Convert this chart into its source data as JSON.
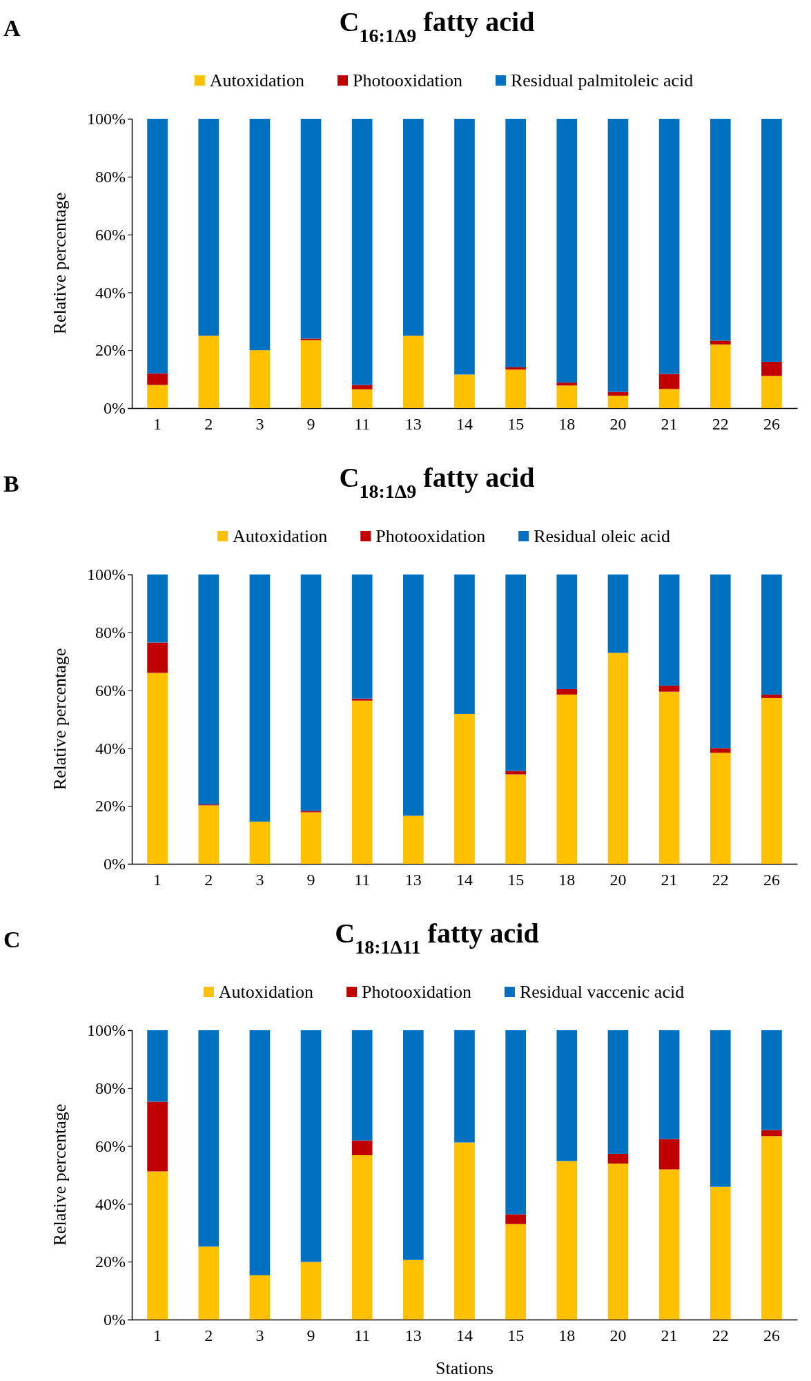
{
  "chart_data": [
    {
      "type": "bar",
      "title": "C$_{16:1Δ9}$ fatty acid",
      "ylabel": "Relative percentage",
      "annotations": [
        "A"
      ],
      "stacked": true,
      "legend": "top",
      "categories": [
        "1",
        "2",
        "3",
        "9",
        "11",
        "13",
        "14",
        "15",
        "18",
        "20",
        "21",
        "22",
        "26"
      ],
      "ylim": [
        0,
        100
      ],
      "yticks": [
        {
          "value": 0,
          "label": "0%"
        },
        {
          "value": 20,
          "label": "20%"
        },
        {
          "value": 40,
          "label": "40%"
        },
        {
          "value": 60,
          "label": "60%"
        },
        {
          "value": 80,
          "label": "80%"
        },
        {
          "value": 100,
          "label": "100%"
        }
      ],
      "series": [
        {
          "name": "Autoxidation",
          "color": "#ffc000",
          "values": [
            8,
            25,
            20,
            23.5,
            6.5,
            25,
            11.6,
            13.3,
            7.8,
            4.3,
            6.6,
            22,
            11.1
          ]
        },
        {
          "name": "Photooxidation",
          "color": "#c00000",
          "values": [
            4,
            0,
            0,
            0.5,
            1.5,
            0,
            0,
            0.8,
            1,
            1.3,
            5.2,
            1.3,
            4.9
          ]
        },
        {
          "name": "Residual palmitoleic acid",
          "color": "#0070c0",
          "values": [
            88,
            75,
            80,
            76,
            92,
            75,
            88.4,
            85.9,
            91.2,
            94.4,
            88.2,
            76.7,
            84
          ]
        }
      ]
    },
    {
      "type": "bar",
      "title": "C$_{18:1Δ9}$ fatty acid",
      "ylabel": "Relative percentage",
      "annotations": [
        "B"
      ],
      "stacked": true,
      "legend": "top",
      "categories": [
        "1",
        "2",
        "3",
        "9",
        "11",
        "13",
        "14",
        "15",
        "18",
        "20",
        "21",
        "22",
        "26"
      ],
      "ylim": [
        0,
        100
      ],
      "yticks": [
        {
          "value": 0,
          "label": "0%"
        },
        {
          "value": 20,
          "label": "20%"
        },
        {
          "value": 40,
          "label": "40%"
        },
        {
          "value": 60,
          "label": "60%"
        },
        {
          "value": 80,
          "label": "80%"
        },
        {
          "value": 100,
          "label": "100%"
        }
      ],
      "series": [
        {
          "name": "Autoxidation",
          "color": "#ffc000",
          "values": [
            66,
            20.2,
            14.6,
            17.8,
            56.4,
            16.6,
            51.8,
            30.9,
            58.5,
            72.9,
            59.5,
            38.4,
            57.3
          ]
        },
        {
          "name": "Photooxidation",
          "color": "#c00000",
          "values": [
            10.5,
            0.3,
            0,
            0.5,
            0.7,
            0,
            0,
            1.2,
            1.9,
            0,
            2.1,
            1.6,
            1.2
          ]
        },
        {
          "name": "Residual oleic acid",
          "color": "#0070c0",
          "values": [
            23.5,
            79.5,
            85.4,
            81.7,
            42.9,
            83.4,
            48.2,
            67.9,
            39.6,
            27.1,
            38.4,
            60,
            41.5
          ]
        }
      ]
    },
    {
      "type": "bar",
      "title": "C$_{18:1Δ11}$ fatty acid",
      "xlabel": "Stations",
      "ylabel": "Relative percentage",
      "annotations": [
        "C"
      ],
      "stacked": true,
      "legend": "top",
      "categories": [
        "1",
        "2",
        "3",
        "9",
        "11",
        "13",
        "14",
        "15",
        "18",
        "20",
        "21",
        "22",
        "26"
      ],
      "ylim": [
        0,
        100
      ],
      "yticks": [
        {
          "value": 0,
          "label": "0%"
        },
        {
          "value": 20,
          "label": "20%"
        },
        {
          "value": 40,
          "label": "40%"
        },
        {
          "value": 60,
          "label": "60%"
        },
        {
          "value": 80,
          "label": "80%"
        },
        {
          "value": 100,
          "label": "100%"
        }
      ],
      "series": [
        {
          "name": "Autoxidation",
          "color": "#ffc000",
          "values": [
            51.2,
            25.2,
            15.3,
            19.9,
            56.8,
            20.6,
            61.2,
            33,
            54.8,
            53.9,
            51.9,
            45.9,
            63.4
          ]
        },
        {
          "name": "Photooxidation",
          "color": "#c00000",
          "values": [
            24.1,
            0,
            0,
            0,
            5.1,
            0,
            0,
            3.4,
            0,
            3.4,
            10.5,
            0,
            2.1
          ]
        },
        {
          "name": "Residual vaccenic acid",
          "color": "#0070c0",
          "values": [
            24.7,
            74.8,
            84.7,
            80.1,
            38.1,
            79.4,
            38.8,
            63.6,
            45.2,
            42.7,
            37.6,
            54.1,
            34.5
          ]
        }
      ]
    }
  ]
}
